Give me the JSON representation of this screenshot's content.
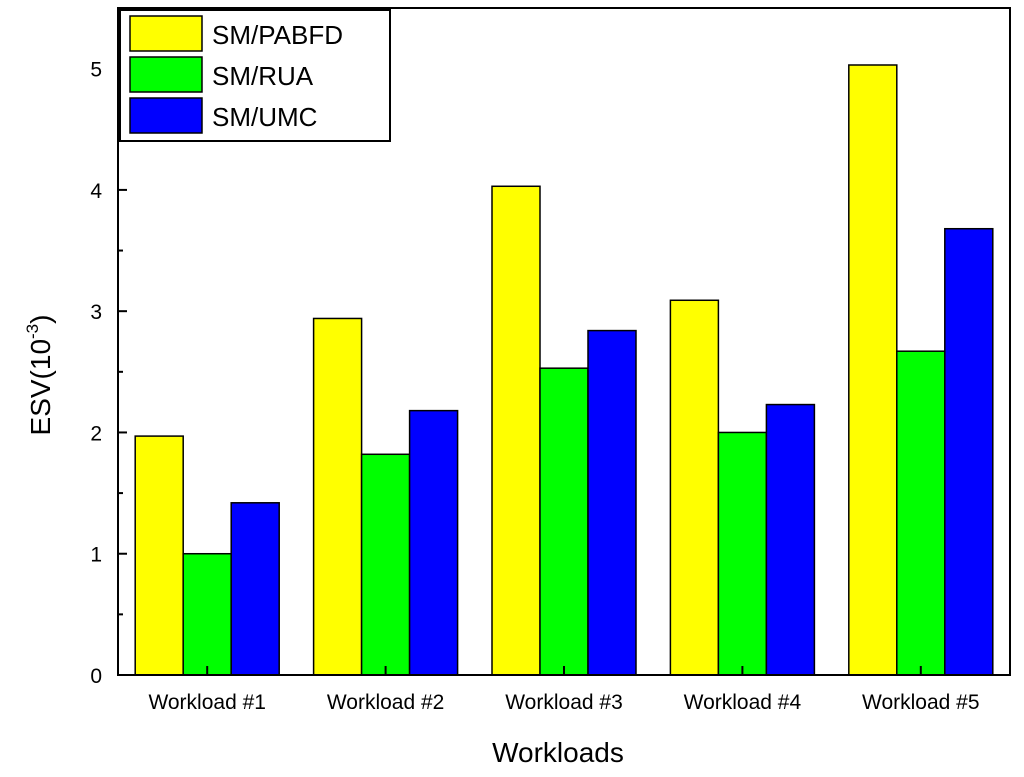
{
  "chart_data": {
    "type": "bar",
    "categories": [
      "Workload #1",
      "Workload #2",
      "Workload #3",
      "Workload #4",
      "Workload #5"
    ],
    "series": [
      {
        "name": "SM/PABFD",
        "color": "#ffff00",
        "values": [
          1.97,
          2.94,
          4.03,
          3.09,
          5.03
        ]
      },
      {
        "name": "SM/RUA",
        "color": "#00ff00",
        "values": [
          1.0,
          1.82,
          2.53,
          2.0,
          2.67
        ]
      },
      {
        "name": "SM/UMC",
        "color": "#0000ff",
        "values": [
          1.42,
          2.18,
          2.84,
          2.23,
          3.68
        ]
      }
    ],
    "xlabel": "Workloads",
    "ylabel_main": "ESV(10",
    "ylabel_sup": "-3",
    "ylabel_close": ")",
    "ylim": [
      0,
      5.5
    ],
    "yticks": [
      0,
      1,
      2,
      3,
      4,
      5
    ],
    "grid": false,
    "legend_position": "top-left"
  }
}
